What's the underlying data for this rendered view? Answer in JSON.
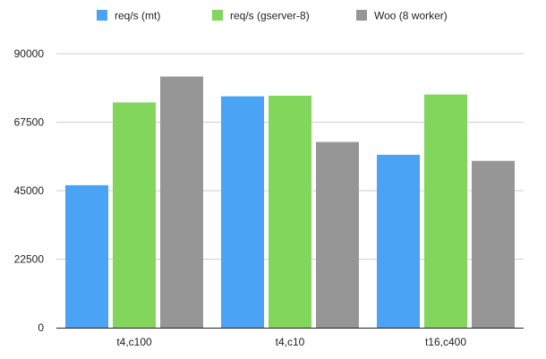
{
  "chart_data": {
    "type": "bar",
    "categories": [
      "t4,c100",
      "t4,c10",
      "t16,c400"
    ],
    "series": [
      {
        "name": "req/s (mt)",
        "color": "#4aa3f5",
        "values": [
          46800,
          76000,
          56800
        ]
      },
      {
        "name": "req/s (gserver-8)",
        "color": "#82d65c",
        "values": [
          74000,
          76200,
          76600
        ]
      },
      {
        "name": "Woo (8 worker)",
        "color": "#969696",
        "values": [
          82500,
          61000,
          54800
        ]
      }
    ],
    "yticks": [
      "0",
      "22500",
      "45000",
      "67500",
      "90000"
    ],
    "ytick_values": [
      0,
      22500,
      45000,
      67500,
      90000
    ],
    "ylim": [
      0,
      90000
    ],
    "title": "",
    "xlabel": "",
    "ylabel": "",
    "grid": true,
    "legend_position": "top"
  }
}
